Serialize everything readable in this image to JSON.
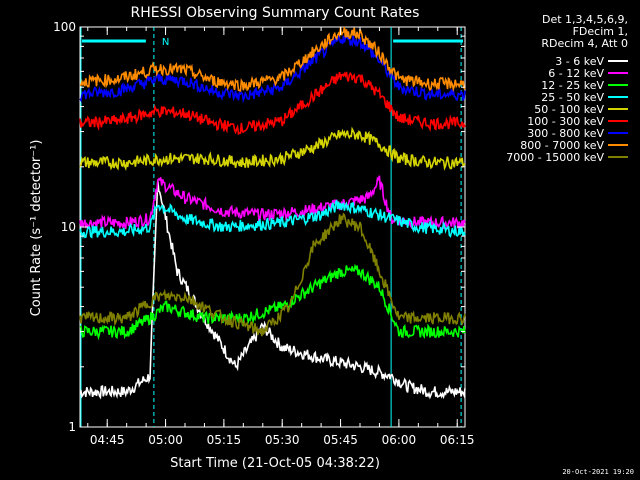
{
  "chart_data": {
    "type": "line",
    "title": "RHESSI Observing Summary Count Rates",
    "xlabel": "Start Time (21-Oct-05 04:38:22)",
    "ylabel": "Count Rate (s⁻¹ detector⁻¹)",
    "y_scale": "log",
    "ylim": [
      1,
      100
    ],
    "y_ticks": [
      "1",
      "10",
      "100"
    ],
    "xlim": [
      "04:38",
      "06:17"
    ],
    "x_ticks": [
      "04:45",
      "05:00",
      "05:15",
      "05:30",
      "05:45",
      "06:00",
      "06:15"
    ],
    "legend_header": [
      "Det 1,3,4,5,6,9,",
      "FDecim 1,",
      "RDecim 4, Att 0"
    ],
    "legend_placement": "right",
    "grid": false,
    "annotations": [
      {
        "text": "N",
        "x": "05:00",
        "color": "#00ffff"
      }
    ],
    "vertical_markers": [
      {
        "x": "04:38",
        "style": "solid",
        "color": "#00ffff"
      },
      {
        "x": "04:57",
        "style": "dashed",
        "color": "#00ffff"
      },
      {
        "x": "05:58",
        "style": "solid",
        "color": "#00ffff"
      },
      {
        "x": "06:16",
        "style": "dashed",
        "color": "#00ffff"
      }
    ],
    "series": [
      {
        "name": "3 - 6 keV",
        "color": "#ffffff",
        "x": [
          "04:38",
          "04:50",
          "04:56",
          "04:58",
          "05:03",
          "05:10",
          "05:18",
          "05:25",
          "05:30",
          "05:40",
          "05:50",
          "05:58",
          "06:02",
          "06:08",
          "06:16"
        ],
        "y": [
          1.5,
          1.5,
          1.8,
          17,
          6,
          3.5,
          2.0,
          3.2,
          2.5,
          2.2,
          2.0,
          1.8,
          1.6,
          1.5,
          1.5
        ]
      },
      {
        "name": "6 - 12 keV",
        "color": "#ff00ff",
        "x": [
          "04:38",
          "04:50",
          "04:56",
          "04:58",
          "05:05",
          "05:15",
          "05:25",
          "05:35",
          "05:45",
          "05:52",
          "05:55",
          "05:58",
          "06:05",
          "06:16"
        ],
        "y": [
          10.5,
          10.5,
          11,
          17,
          14,
          12,
          11.5,
          12,
          13,
          14,
          17,
          11,
          10.5,
          10.5
        ]
      },
      {
        "name": "12 - 25 keV",
        "color": "#00ff00",
        "x": [
          "04:38",
          "04:50",
          "04:56",
          "05:00",
          "05:10",
          "05:20",
          "05:30",
          "05:38",
          "05:45",
          "05:50",
          "05:55",
          "06:00",
          "06:08",
          "06:16"
        ],
        "y": [
          3,
          3,
          3.5,
          4,
          3.5,
          3.5,
          4,
          5,
          6,
          6,
          5,
          3,
          3,
          3
        ]
      },
      {
        "name": "25 - 50 keV",
        "color": "#00ffff",
        "x": [
          "04:38",
          "04:50",
          "04:56",
          "04:58",
          "05:05",
          "05:15",
          "05:30",
          "05:40",
          "05:45",
          "05:52",
          "05:58",
          "06:05",
          "06:16"
        ],
        "y": [
          9.5,
          9.5,
          10,
          13,
          11,
          10,
          10.5,
          11.5,
          13,
          12,
          11,
          10,
          9.5
        ]
      },
      {
        "name": "50 - 100 keV",
        "color": "#d4d400",
        "x": [
          "04:38",
          "04:50",
          "05:00",
          "05:10",
          "05:20",
          "05:30",
          "05:38",
          "05:45",
          "05:50",
          "05:55",
          "06:00",
          "06:08",
          "06:16"
        ],
        "y": [
          21,
          21,
          22,
          22,
          21,
          22,
          25,
          29,
          29,
          26,
          22,
          21,
          21
        ]
      },
      {
        "name": "100 - 300 keV",
        "color": "#ff0000",
        "x": [
          "04:38",
          "04:48",
          "04:58",
          "05:05",
          "05:12",
          "05:20",
          "05:30",
          "05:38",
          "05:45",
          "05:50",
          "05:55",
          "06:00",
          "06:08",
          "06:16"
        ],
        "y": [
          33,
          34,
          38,
          37,
          33,
          31,
          34,
          45,
          57,
          56,
          46,
          35,
          33,
          33
        ]
      },
      {
        "name": "300 - 800 keV",
        "color": "#0000ff",
        "x": [
          "04:38",
          "04:48",
          "04:58",
          "05:05",
          "05:12",
          "05:20",
          "05:30",
          "05:38",
          "05:45",
          "05:50",
          "05:55",
          "06:00",
          "06:08",
          "06:16"
        ],
        "y": [
          46,
          48,
          55,
          54,
          48,
          45,
          50,
          68,
          88,
          85,
          68,
          50,
          46,
          46
        ]
      },
      {
        "name": "800 - 7000 keV",
        "color": "#ff8c00",
        "x": [
          "04:38",
          "04:48",
          "04:58",
          "05:05",
          "05:12",
          "05:20",
          "05:30",
          "05:38",
          "05:45",
          "05:50",
          "05:55",
          "06:00",
          "06:08",
          "06:16"
        ],
        "y": [
          53,
          55,
          62,
          61,
          54,
          51,
          56,
          75,
          95,
          92,
          74,
          55,
          52,
          52
        ]
      },
      {
        "name": "7000 - 15000 keV",
        "color": "#808000",
        "x": [
          "04:38",
          "04:50",
          "04:58",
          "05:05",
          "05:15",
          "05:25",
          "05:32",
          "05:38",
          "05:45",
          "05:50",
          "05:55",
          "06:00",
          "06:08",
          "06:16"
        ],
        "y": [
          3.5,
          3.5,
          4.5,
          4.5,
          3.5,
          3,
          4,
          8,
          11,
          10,
          6,
          3.5,
          3.5,
          3.5
        ]
      }
    ]
  },
  "footer": {
    "timestamp": "20-Oct-2021 19:20"
  }
}
